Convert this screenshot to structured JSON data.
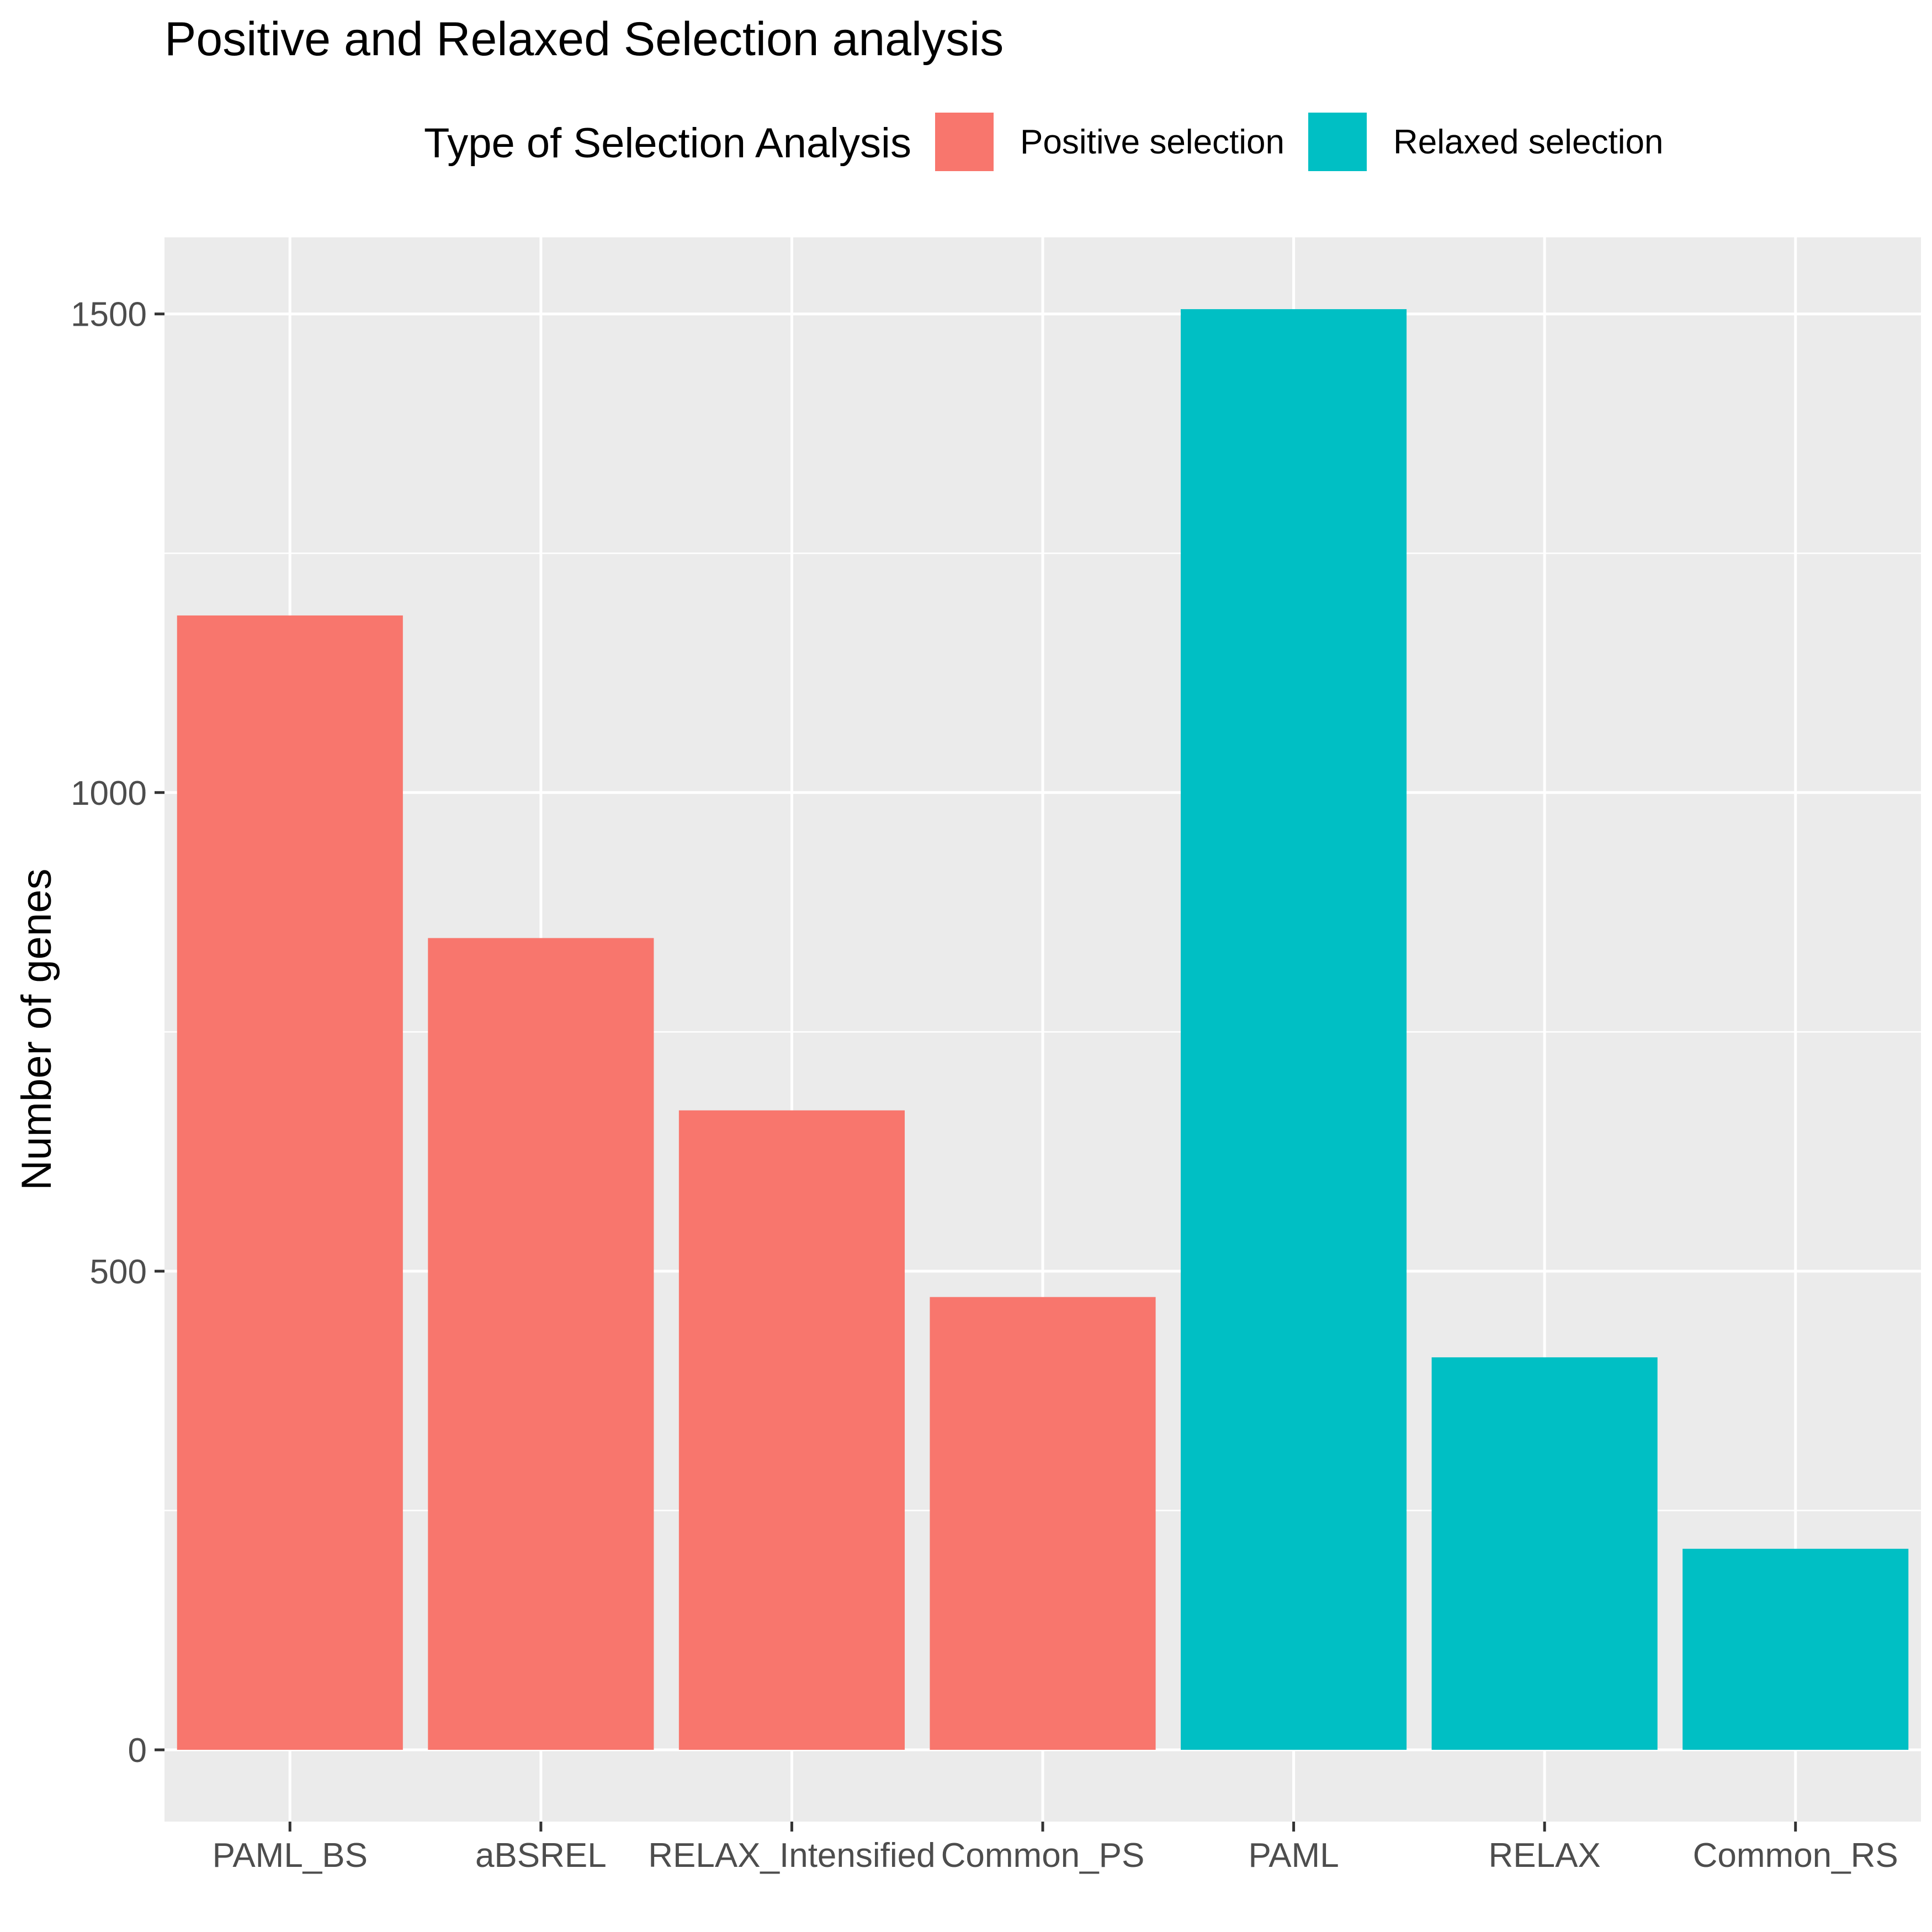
{
  "chart_data": {
    "type": "bar",
    "title": "Positive and Relaxed Selection analysis",
    "xlabel": "",
    "ylabel": "Number of genes",
    "categories": [
      "PAML_BS",
      "aBSREL",
      "RELAX_Intensified",
      "Common_PS",
      "PAML",
      "RELAX",
      "Common_RS"
    ],
    "values": [
      1185,
      848,
      668,
      473,
      1505,
      410,
      210
    ],
    "groups": [
      "Positive selection",
      "Positive selection",
      "Positive selection",
      "Positive selection",
      "Relaxed selection",
      "Relaxed selection",
      "Relaxed selection"
    ],
    "ylim": [
      -75,
      1580
    ],
    "yticks": [
      0,
      500,
      1000,
      1500
    ],
    "grid": true,
    "legend": {
      "title": "Type of Selection Analysis",
      "position": "top",
      "entries": [
        {
          "label": "Positive selection",
          "color": "#F8766D"
        },
        {
          "label": "Relaxed selection",
          "color": "#00BFC4"
        }
      ]
    }
  }
}
